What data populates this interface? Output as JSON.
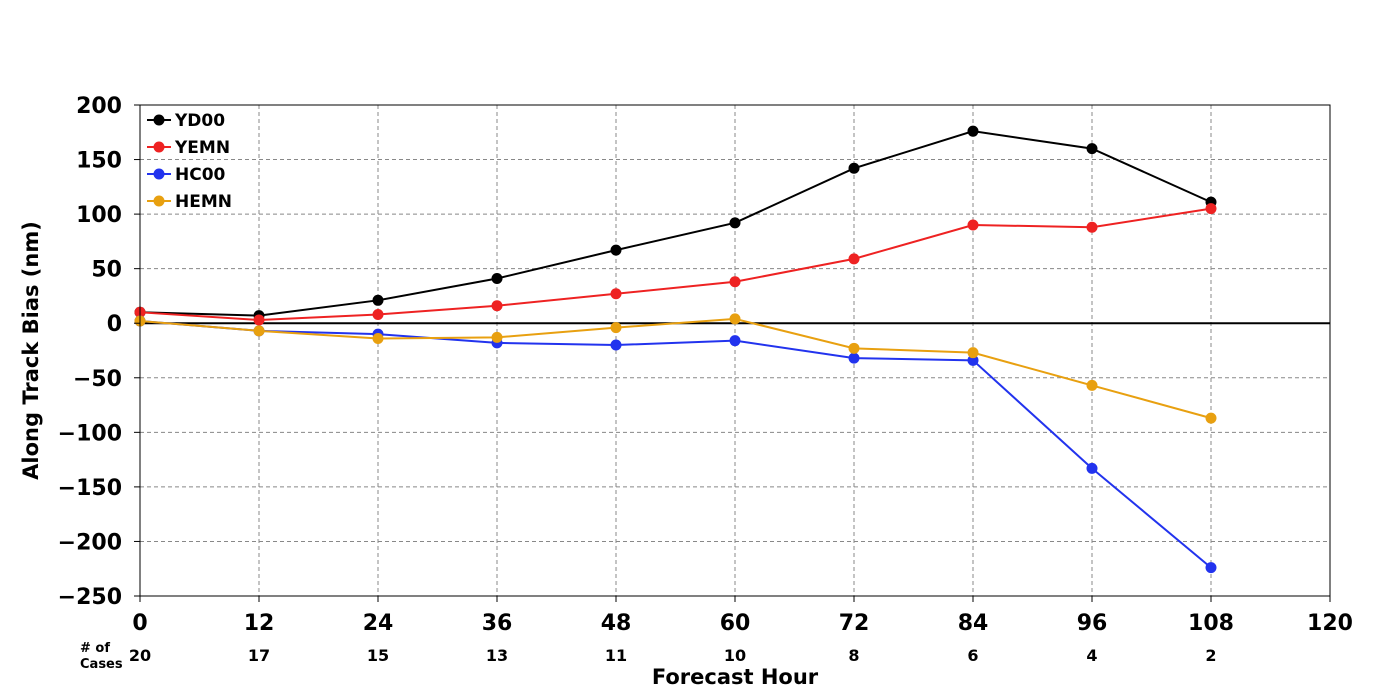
{
  "chart_data": {
    "type": "line",
    "title": "",
    "xlabel": "Forecast Hour",
    "ylabel": "Along Track Bias (nm)",
    "xlim": [
      0,
      120
    ],
    "ylim": [
      -250,
      200
    ],
    "x_ticks": [
      0,
      12,
      24,
      36,
      48,
      60,
      72,
      84,
      96,
      108,
      120
    ],
    "y_ticks": [
      -250,
      -200,
      -150,
      -100,
      -50,
      0,
      50,
      100,
      150,
      200
    ],
    "x": [
      0,
      12,
      24,
      36,
      48,
      60,
      72,
      84,
      96,
      108
    ],
    "grid": true,
    "legend_position": "top-left",
    "series": [
      {
        "name": "YD00",
        "color": "#000000",
        "values": [
          10,
          7,
          21,
          41,
          67,
          92,
          142,
          176,
          160,
          111
        ]
      },
      {
        "name": "YEMN",
        "color": "#ee2222",
        "values": [
          10,
          3,
          8,
          16,
          27,
          38,
          59,
          90,
          88,
          105
        ]
      },
      {
        "name": "HC00",
        "color": "#2233ee",
        "values": [
          2,
          -7,
          -10,
          -18,
          -20,
          -16,
          -32,
          -34,
          -133,
          -224
        ]
      },
      {
        "name": "HEMN",
        "color": "#e8a010",
        "values": [
          2,
          -7,
          -14,
          -13,
          -4,
          4,
          -23,
          -27,
          -57,
          -87
        ]
      }
    ],
    "cases_label_line1": "# of",
    "cases_label_line2": "Cases",
    "cases": [
      20,
      17,
      15,
      13,
      11,
      10,
      8,
      6,
      4,
      2
    ]
  }
}
